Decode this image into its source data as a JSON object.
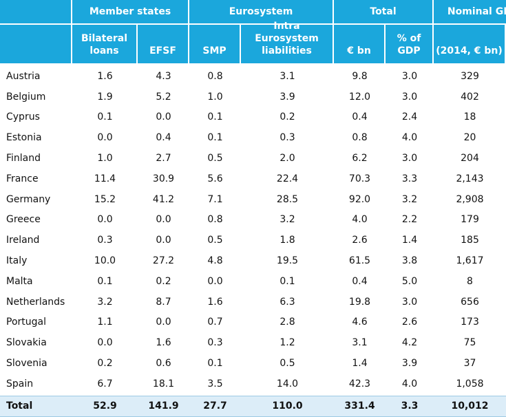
{
  "table": {
    "group_headers": [
      "Member states",
      "Eurosystem",
      "Total",
      "Nominal GDP"
    ],
    "column_headers": [
      "Bilateral loans",
      "EFSF",
      "SMP",
      "Intra Eurosystem liabilities",
      "€ bn",
      "% of GDP",
      "(2014, € bn)"
    ],
    "rows": [
      [
        "Austria",
        "1.6",
        "4.3",
        "0.8",
        "3.1",
        "9.8",
        "3.0",
        "329"
      ],
      [
        "Belgium",
        "1.9",
        "5.2",
        "1.0",
        "3.9",
        "12.0",
        "3.0",
        "402"
      ],
      [
        "Cyprus",
        "0.1",
        "0.0",
        "0.1",
        "0.2",
        "0.4",
        "2.4",
        "18"
      ],
      [
        "Estonia",
        "0.0",
        "0.4",
        "0.1",
        "0.3",
        "0.8",
        "4.0",
        "20"
      ],
      [
        "Finland",
        "1.0",
        "2.7",
        "0.5",
        "2.0",
        "6.2",
        "3.0",
        "204"
      ],
      [
        "France",
        "11.4",
        "30.9",
        "5.6",
        "22.4",
        "70.3",
        "3.3",
        "2,143"
      ],
      [
        "Germany",
        "15.2",
        "41.2",
        "7.1",
        "28.5",
        "92.0",
        "3.2",
        "2,908"
      ],
      [
        "Greece",
        "0.0",
        "0.0",
        "0.8",
        "3.2",
        "4.0",
        "2.2",
        "179"
      ],
      [
        "Ireland",
        "0.3",
        "0.0",
        "0.5",
        "1.8",
        "2.6",
        "1.4",
        "185"
      ],
      [
        "Italy",
        "10.0",
        "27.2",
        "4.8",
        "19.5",
        "61.5",
        "3.8",
        "1,617"
      ],
      [
        "Malta",
        "0.1",
        "0.2",
        "0.0",
        "0.1",
        "0.4",
        "5.0",
        "8"
      ],
      [
        "Netherlands",
        "3.2",
        "8.7",
        "1.6",
        "6.3",
        "19.8",
        "3.0",
        "656"
      ],
      [
        "Portugal",
        "1.1",
        "0.0",
        "0.7",
        "2.8",
        "4.6",
        "2.6",
        "173"
      ],
      [
        "Slovakia",
        "0.0",
        "1.6",
        "0.3",
        "1.2",
        "3.1",
        "4.2",
        "75"
      ],
      [
        "Slovenia",
        "0.2",
        "0.6",
        "0.1",
        "0.5",
        "1.4",
        "3.9",
        "37"
      ],
      [
        "Spain",
        "6.7",
        "18.1",
        "3.5",
        "14.0",
        "42.3",
        "4.0",
        "1,058"
      ]
    ],
    "total": [
      "Total",
      "52.9",
      "141.9",
      "27.7",
      "110.0",
      "331.4",
      "3.3",
      "10,012"
    ]
  }
}
